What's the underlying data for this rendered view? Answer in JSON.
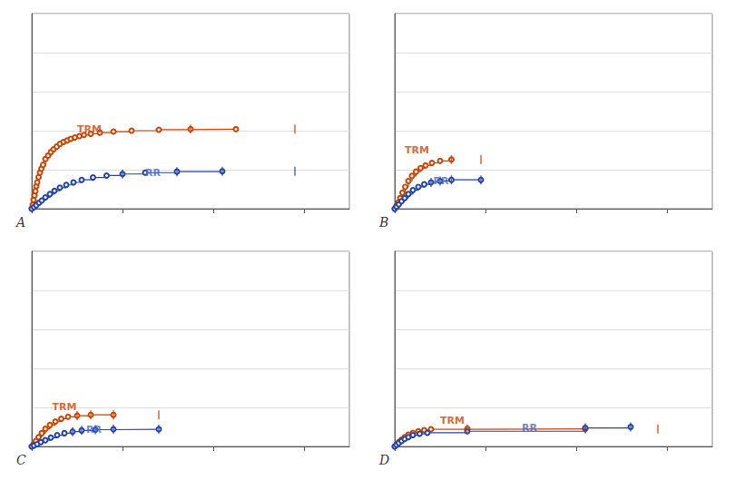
{
  "chart_data": [
    {
      "type": "line",
      "title": "A",
      "series": [
        {
          "name": "TRM",
          "color": "#cc4400",
          "line_style": "step",
          "marker": "open_circle",
          "x": [
            0,
            0.02,
            0.04,
            0.06,
            0.08,
            0.1,
            0.12,
            0.15,
            0.18,
            0.21,
            0.25,
            0.3,
            0.36,
            0.42,
            0.48,
            0.55,
            0.62,
            0.7,
            0.78,
            0.86,
            0.95,
            1.05,
            1.15,
            1.3,
            1.5,
            1.8,
            2.2,
            2.8,
            3.5,
            4.5
          ],
          "values": [
            0,
            0.02,
            0.045,
            0.068,
            0.09,
            0.115,
            0.135,
            0.162,
            0.185,
            0.205,
            0.225,
            0.255,
            0.272,
            0.29,
            0.305,
            0.318,
            0.332,
            0.342,
            0.35,
            0.358,
            0.365,
            0.372,
            0.378,
            0.384,
            0.39,
            0.395,
            0.4,
            0.405,
            0.408,
            0.408
          ],
          "censors": {
            "x": [
              3.5,
              5.8
            ],
            "y": [
              0.408,
              0.408
            ]
          }
        },
        {
          "name": "RR",
          "color": "#2244aa",
          "line_style": "step",
          "marker": "open_circle",
          "x": [
            0,
            0.05,
            0.1,
            0.16,
            0.22,
            0.3,
            0.4,
            0.5,
            0.62,
            0.76,
            0.92,
            1.1,
            1.35,
            1.65,
            2.0,
            2.5,
            3.2,
            4.2
          ],
          "values": [
            0,
            0.008,
            0.018,
            0.03,
            0.042,
            0.058,
            0.075,
            0.092,
            0.108,
            0.122,
            0.135,
            0.148,
            0.16,
            0.17,
            0.178,
            0.185,
            0.19,
            0.192
          ],
          "censors": {
            "x": [
              2.0,
              3.2,
              4.2,
              5.8
            ],
            "y": [
              0.178,
              0.19,
              0.192,
              0.192
            ]
          }
        }
      ],
      "annotations": [
        {
          "text": "TRM",
          "x": 1.0,
          "y": 0.38,
          "color": "#cc4400"
        },
        {
          "text": "RR",
          "x": 2.5,
          "y": 0.16,
          "color": "#4466cc"
        }
      ],
      "xlim": [
        0,
        7
      ],
      "ylim": [
        0,
        1.0
      ],
      "xticks": [
        0,
        2,
        4,
        6
      ],
      "yticks": [
        0,
        0.2,
        0.4,
        0.6,
        0.8,
        1.0
      ],
      "grid": "y",
      "tick_labels": false
    },
    {
      "type": "line",
      "title": "B",
      "series": [
        {
          "name": "TRM",
          "color": "#cc4400",
          "line_style": "step",
          "marker": "open_circle",
          "x": [
            0,
            0.04,
            0.08,
            0.12,
            0.17,
            0.23,
            0.3,
            0.38,
            0.47,
            0.57,
            0.68,
            0.82,
            1.0,
            1.25
          ],
          "values": [
            0,
            0.015,
            0.032,
            0.055,
            0.082,
            0.112,
            0.142,
            0.168,
            0.19,
            0.208,
            0.222,
            0.235,
            0.245,
            0.252
          ],
          "censors": {
            "x": [
              1.25,
              1.9
            ],
            "y": [
              0.252,
              0.252
            ]
          }
        },
        {
          "name": "RR",
          "color": "#2244aa",
          "line_style": "step",
          "marker": "open_circle",
          "x": [
            0,
            0.04,
            0.09,
            0.15,
            0.22,
            0.3,
            0.4,
            0.52,
            0.65,
            0.8,
            1.0,
            1.25,
            1.9
          ],
          "values": [
            0,
            0.01,
            0.022,
            0.038,
            0.055,
            0.075,
            0.095,
            0.112,
            0.125,
            0.135,
            0.142,
            0.148,
            0.148
          ],
          "censors": {
            "x": [
              0.8,
              1.0,
              1.25,
              1.9
            ],
            "y": [
              0.135,
              0.142,
              0.148,
              0.148
            ]
          }
        }
      ],
      "annotations": [
        {
          "text": "TRM",
          "x": 0.22,
          "y": 0.275,
          "color": "#cc4400"
        },
        {
          "text": "RR",
          "x": 0.85,
          "y": 0.115,
          "color": "#4466cc"
        }
      ],
      "xlim": [
        0,
        7
      ],
      "ylim": [
        0,
        1.0
      ],
      "xticks": [
        0,
        2,
        4,
        6
      ],
      "yticks": [
        0,
        0.2,
        0.4,
        0.6,
        0.8,
        1.0
      ],
      "grid": "y",
      "tick_labels": false
    },
    {
      "type": "line",
      "title": "C",
      "series": [
        {
          "name": "TRM",
          "color": "#cc4400",
          "line_style": "step",
          "marker": "open_circle",
          "x": [
            0,
            0.04,
            0.09,
            0.15,
            0.22,
            0.3,
            0.4,
            0.52,
            0.65,
            0.8,
            1.0,
            1.3,
            1.8
          ],
          "values": [
            0,
            0.012,
            0.028,
            0.048,
            0.068,
            0.09,
            0.11,
            0.128,
            0.142,
            0.152,
            0.158,
            0.162,
            0.162
          ],
          "censors": {
            "x": [
              1.0,
              1.3,
              1.8,
              2.8
            ],
            "y": [
              0.158,
              0.162,
              0.162,
              0.162
            ]
          }
        },
        {
          "name": "RR",
          "color": "#2244aa",
          "line_style": "step",
          "marker": "open_circle",
          "x": [
            0,
            0.05,
            0.12,
            0.2,
            0.3,
            0.42,
            0.56,
            0.72,
            0.9,
            1.1,
            1.4,
            1.8,
            2.8
          ],
          "values": [
            0,
            0.005,
            0.012,
            0.022,
            0.032,
            0.045,
            0.058,
            0.068,
            0.076,
            0.082,
            0.086,
            0.088,
            0.088
          ],
          "censors": {
            "x": [
              0.9,
              1.1,
              1.4,
              1.8,
              2.8
            ],
            "y": [
              0.076,
              0.082,
              0.086,
              0.088,
              0.088
            ]
          }
        }
      ],
      "annotations": [
        {
          "text": "TRM",
          "x": 0.45,
          "y": 0.175,
          "color": "#cc4400"
        },
        {
          "text": "RR",
          "x": 1.2,
          "y": 0.062,
          "color": "#4466cc"
        }
      ],
      "xlim": [
        0,
        7
      ],
      "ylim": [
        0,
        1.0
      ],
      "xticks": [
        0,
        2,
        4,
        6
      ],
      "yticks": [
        0,
        0.2,
        0.4,
        0.6,
        0.8,
        1.0
      ],
      "grid": "y",
      "tick_labels": false
    },
    {
      "type": "line",
      "title": "D",
      "series": [
        {
          "name": "TRM",
          "color": "#cc4400",
          "line_style": "step",
          "marker": "open_circle",
          "x": [
            0,
            0.04,
            0.09,
            0.15,
            0.22,
            0.3,
            0.4,
            0.52,
            0.65,
            0.8,
            1.6,
            4.2
          ],
          "values": [
            0,
            0.01,
            0.022,
            0.035,
            0.048,
            0.06,
            0.07,
            0.078,
            0.084,
            0.088,
            0.09,
            0.09
          ],
          "censors": {
            "x": [
              1.6,
              4.2,
              5.8
            ],
            "y": [
              0.09,
              0.09,
              0.09
            ]
          }
        },
        {
          "name": "RR",
          "color": "#2244aa",
          "line_style": "step",
          "marker": "open_circle",
          "x": [
            0,
            0.04,
            0.09,
            0.15,
            0.22,
            0.3,
            0.4,
            0.55,
            0.72,
            1.6,
            4.2,
            5.2
          ],
          "values": [
            0,
            0.008,
            0.018,
            0.028,
            0.038,
            0.048,
            0.058,
            0.065,
            0.07,
            0.078,
            0.095,
            0.1
          ],
          "censors": {
            "x": [
              4.2,
              5.2
            ],
            "y": [
              0.095,
              0.1
            ]
          }
        }
      ],
      "annotations": [
        {
          "text": "TRM",
          "x": 1.0,
          "y": 0.108,
          "color": "#cc4400"
        },
        {
          "text": "RR",
          "x": 2.8,
          "y": 0.068,
          "color": "#4466cc"
        }
      ],
      "xlim": [
        0,
        7
      ],
      "ylim": [
        0,
        1.0
      ],
      "xticks": [
        0,
        2,
        4,
        6
      ],
      "yticks": [
        0,
        0.2,
        0.4,
        0.6,
        0.8,
        1.0
      ],
      "grid": "y",
      "tick_labels": false
    }
  ]
}
